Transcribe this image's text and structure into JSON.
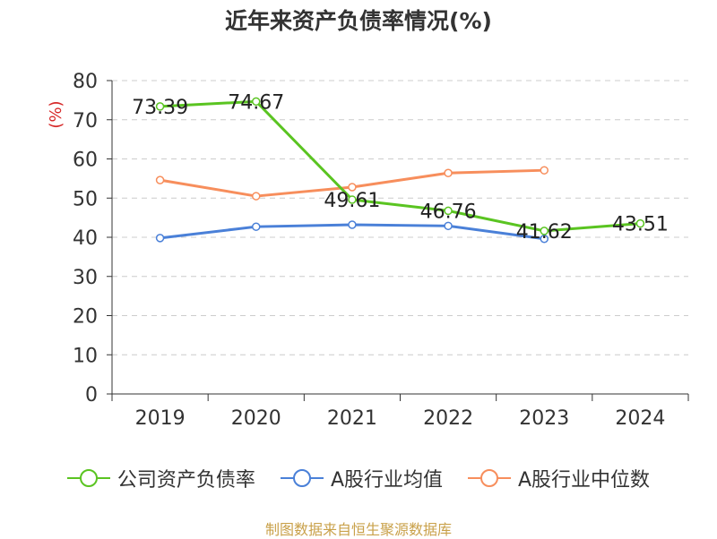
{
  "chart_data": {
    "type": "line",
    "title": "近年来资产负债率情况(%)",
    "ylabel": "(%)",
    "ylim": [
      0,
      80
    ],
    "yticks": [
      0,
      10,
      20,
      30,
      40,
      50,
      60,
      70,
      80
    ],
    "categories": [
      "2019",
      "2020",
      "2021",
      "2022",
      "2023",
      "2024"
    ],
    "grid": true,
    "legend_position": "bottom",
    "series": [
      {
        "name": "公司资产负债率",
        "color": "#5ac421",
        "values": [
          73.39,
          74.67,
          49.61,
          46.76,
          41.62,
          43.51
        ],
        "labels": [
          "73.39",
          "74.67",
          "49.61",
          "46.76",
          "41.62",
          "43.51"
        ]
      },
      {
        "name": "A股行业均值",
        "color": "#4a80d8",
        "values": [
          39.8,
          42.7,
          43.2,
          42.9,
          39.6,
          null
        ]
      },
      {
        "name": "A股行业中位数",
        "color": "#f78e5c",
        "values": [
          54.6,
          50.5,
          52.8,
          56.4,
          57.1,
          null
        ]
      }
    ]
  },
  "source_text": "制图数据来自恒生聚源数据库"
}
